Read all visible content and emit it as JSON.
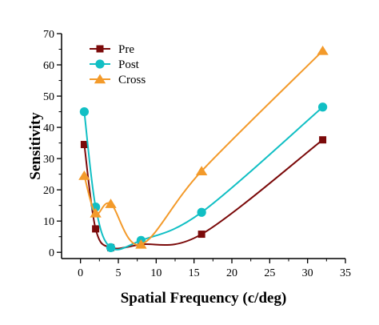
{
  "chart_data": {
    "type": "line",
    "xlabel": "Spatial Frequency (c/deg)",
    "ylabel": "Sensitivity",
    "xlim": [
      -2.5,
      35
    ],
    "ylim": [
      -2,
      70
    ],
    "xticks": [
      0,
      5,
      10,
      15,
      20,
      25,
      30,
      35
    ],
    "yticks": [
      0,
      10,
      20,
      30,
      40,
      50,
      60,
      70
    ],
    "grid": false,
    "legend_position": "top-left",
    "series": [
      {
        "name": "Pre",
        "color": "#7B0A0A",
        "marker": "square",
        "x": [
          0.5,
          2,
          4,
          8,
          16,
          32
        ],
        "y": [
          34.5,
          7.5,
          1.5,
          2.5,
          5.8,
          36
        ]
      },
      {
        "name": "Post",
        "color": "#11BFC4",
        "marker": "circle",
        "x": [
          0.5,
          2,
          4,
          8,
          16,
          32
        ],
        "y": [
          45,
          14.5,
          1.5,
          3.8,
          12.8,
          46.5
        ]
      },
      {
        "name": "Cross",
        "color": "#F39A2A",
        "marker": "triangle",
        "x": [
          0.5,
          2,
          4,
          8,
          16,
          32
        ],
        "y": [
          24.5,
          12.5,
          15.5,
          2.5,
          26,
          64.5
        ]
      }
    ]
  }
}
